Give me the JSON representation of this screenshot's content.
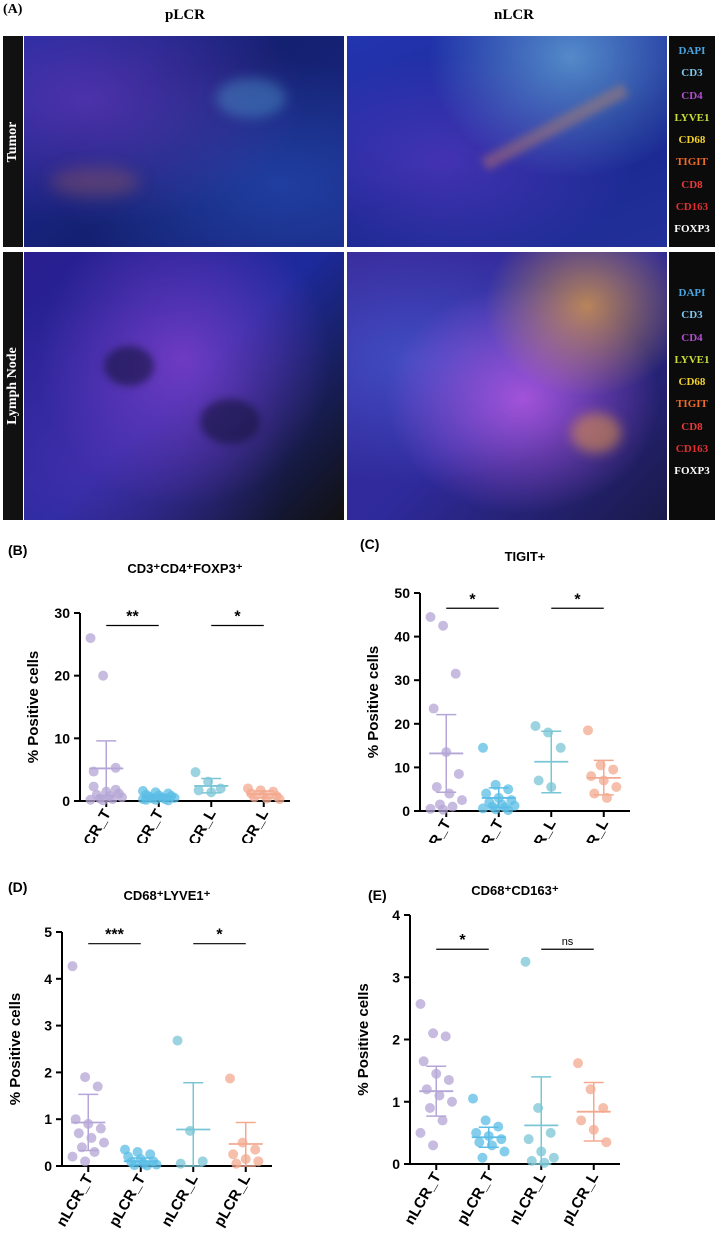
{
  "figure": {
    "panel_a_letter": "(A)",
    "columns": [
      "pLCR",
      "nLCR"
    ],
    "rows": [
      "Tumor",
      "Lymph Node"
    ],
    "legend": [
      {
        "label": "DAPI",
        "color": "#4aa3df"
      },
      {
        "label": "CD3",
        "color": "#7fc8f0"
      },
      {
        "label": "CD4",
        "color": "#b04fd0"
      },
      {
        "label": "LYVE1",
        "color": "#c9dc3a"
      },
      {
        "label": "CD68",
        "color": "#f2d12a"
      },
      {
        "label": "TIGIT",
        "color": "#f06a2a"
      },
      {
        "label": "CD8",
        "color": "#e83a3a"
      },
      {
        "label": "CD163",
        "color": "#e23030"
      },
      {
        "label": "FOXP3",
        "color": "#ffffff"
      }
    ]
  },
  "chart_data": [
    {
      "panel": "(B)",
      "type": "scatter",
      "title": "CD3⁺CD4⁺FOXP3⁺",
      "ylabel": "% Positive cells",
      "categories": [
        "nLCR_T",
        "pLCR_T",
        "nLCR_L",
        "pLCR_L"
      ],
      "colors": [
        "#b4a6d6",
        "#5bbde6",
        "#7ac6d6",
        "#f3a98f"
      ],
      "yticks": [
        0,
        10,
        20,
        30
      ],
      "ylim": [
        0,
        30
      ],
      "points": [
        [
          26,
          20,
          5.3,
          4.7,
          1.5,
          1.2,
          1.0,
          0.8,
          0.6,
          0.4,
          0.3,
          0.2,
          0.1,
          1.8,
          2.3
        ],
        [
          1.6,
          1.4,
          1.2,
          1.0,
          0.9,
          0.8,
          0.7,
          0.6,
          0.5,
          0.4,
          0.3,
          0.3,
          0.2,
          0.1,
          0.2
        ],
        [
          4.6,
          3.1,
          2.0,
          1.7,
          1.4
        ],
        [
          2.0,
          1.7,
          1.5,
          1.2,
          1.0,
          0.8,
          0.6,
          0.4,
          0.3
        ]
      ],
      "means": [
        5.2,
        0.7,
        2.4,
        1.1
      ],
      "errors": [
        [
          0.8,
          9.6
        ],
        [
          0.3,
          1.0
        ],
        [
          1.3,
          3.6
        ],
        [
          0.5,
          1.6
        ]
      ],
      "significance": [
        {
          "groups": [
            0,
            1
          ],
          "label": "**",
          "y": 28
        },
        {
          "groups": [
            2,
            3
          ],
          "label": "*",
          "y": 28
        }
      ]
    },
    {
      "panel": "(C)",
      "type": "scatter",
      "title": "TIGIT+",
      "ylabel": "% Positive cells",
      "categories": [
        "nLCR_T",
        "pLCR_T",
        "nLCR_L",
        "pLCR_L"
      ],
      "colors": [
        "#b4a6d6",
        "#5bbde6",
        "#7ac6d6",
        "#f3a98f"
      ],
      "yticks": [
        0,
        10,
        20,
        30,
        40,
        50
      ],
      "ylim": [
        0,
        50
      ],
      "points": [
        [
          44.5,
          42.5,
          31.5,
          23.5,
          13.5,
          8.5,
          5.5,
          4.0,
          2.5,
          1.5,
          1.0,
          0.5,
          0.3
        ],
        [
          14.5,
          6.0,
          5.0,
          4.0,
          3.0,
          2.5,
          2.0,
          1.5,
          1.2,
          1.0,
          0.8,
          0.6,
          0.4,
          0.2
        ],
        [
          19.5,
          18.0,
          14.5,
          7.0,
          5.5
        ],
        [
          18.5,
          10.5,
          9.5,
          8.0,
          7.0,
          5.5,
          4.0,
          3.0
        ]
      ],
      "means": [
        13.2,
        3.0,
        11.3,
        7.6
      ],
      "errors": [
        [
          4.3,
          22.1
        ],
        [
          0.8,
          5.3
        ],
        [
          4.2,
          18.3
        ],
        [
          3.7,
          11.6
        ]
      ],
      "significance": [
        {
          "groups": [
            0,
            1
          ],
          "label": "*",
          "y": 46.5
        },
        {
          "groups": [
            2,
            3
          ],
          "label": "*",
          "y": 46.5
        }
      ]
    },
    {
      "panel": "(D)",
      "type": "scatter",
      "title": "CD68⁺LYVE1⁺",
      "ylabel": "% Positive cells",
      "categories": [
        "nLCR_T",
        "pLCR_T",
        "nLCR_L",
        "pLCR_L"
      ],
      "colors": [
        "#b4a6d6",
        "#5bbde6",
        "#7ac6d6",
        "#f3a98f"
      ],
      "yticks": [
        0,
        1,
        2,
        3,
        4,
        5
      ],
      "ylim": [
        0,
        5
      ],
      "points": [
        [
          4.27,
          1.9,
          1.7,
          1.0,
          0.9,
          0.8,
          0.7,
          0.6,
          0.5,
          0.4,
          0.3,
          0.2,
          0.1
        ],
        [
          0.35,
          0.3,
          0.25,
          0.2,
          0.15,
          0.1,
          0.08,
          0.05,
          0.03,
          0.02,
          0.01
        ],
        [
          2.68,
          0.75,
          0.1,
          0.05
        ],
        [
          1.87,
          0.5,
          0.35,
          0.25,
          0.15,
          0.1,
          0.05
        ]
      ],
      "means": [
        0.93,
        0.1,
        0.78,
        0.47
      ],
      "errors": [
        [
          0.33,
          1.53
        ],
        [
          0.03,
          0.17
        ],
        [
          0.0,
          1.78
        ],
        [
          0.0,
          0.93
        ]
      ],
      "significance": [
        {
          "groups": [
            0,
            1
          ],
          "label": "***",
          "y": 4.75
        },
        {
          "groups": [
            2,
            3
          ],
          "label": "*",
          "y": 4.75
        }
      ]
    },
    {
      "panel": "(E)",
      "type": "scatter",
      "title": "CD68⁺CD163⁺",
      "ylabel": "% Positive cells",
      "categories": [
        "nLCR_T",
        "pLCR_T",
        "nLCR_L",
        "pLCR_L"
      ],
      "colors": [
        "#b4a6d6",
        "#5bbde6",
        "#7ac6d6",
        "#f3a98f"
      ],
      "yticks": [
        0,
        1,
        2,
        3,
        4
      ],
      "ylim": [
        0,
        4
      ],
      "points": [
        [
          2.57,
          2.1,
          2.05,
          1.65,
          1.45,
          1.35,
          1.2,
          1.1,
          1.0,
          0.9,
          0.7,
          0.5,
          0.3
        ],
        [
          1.05,
          0.7,
          0.6,
          0.5,
          0.45,
          0.4,
          0.35,
          0.3,
          0.2,
          0.1
        ],
        [
          3.25,
          0.9,
          0.5,
          0.4,
          0.2,
          0.1,
          0.05,
          0.02
        ],
        [
          1.62,
          1.2,
          0.9,
          0.7,
          0.55,
          0.35
        ]
      ],
      "means": [
        1.17,
        0.43,
        0.62,
        0.84
      ],
      "errors": [
        [
          0.77,
          1.57
        ],
        [
          0.27,
          0.59
        ],
        [
          0.0,
          1.4
        ],
        [
          0.37,
          1.31
        ]
      ],
      "significance": [
        {
          "groups": [
            0,
            1
          ],
          "label": "*",
          "y": 3.45
        },
        {
          "groups": [
            2,
            3
          ],
          "label": "ns",
          "y": 3.45
        }
      ]
    }
  ]
}
